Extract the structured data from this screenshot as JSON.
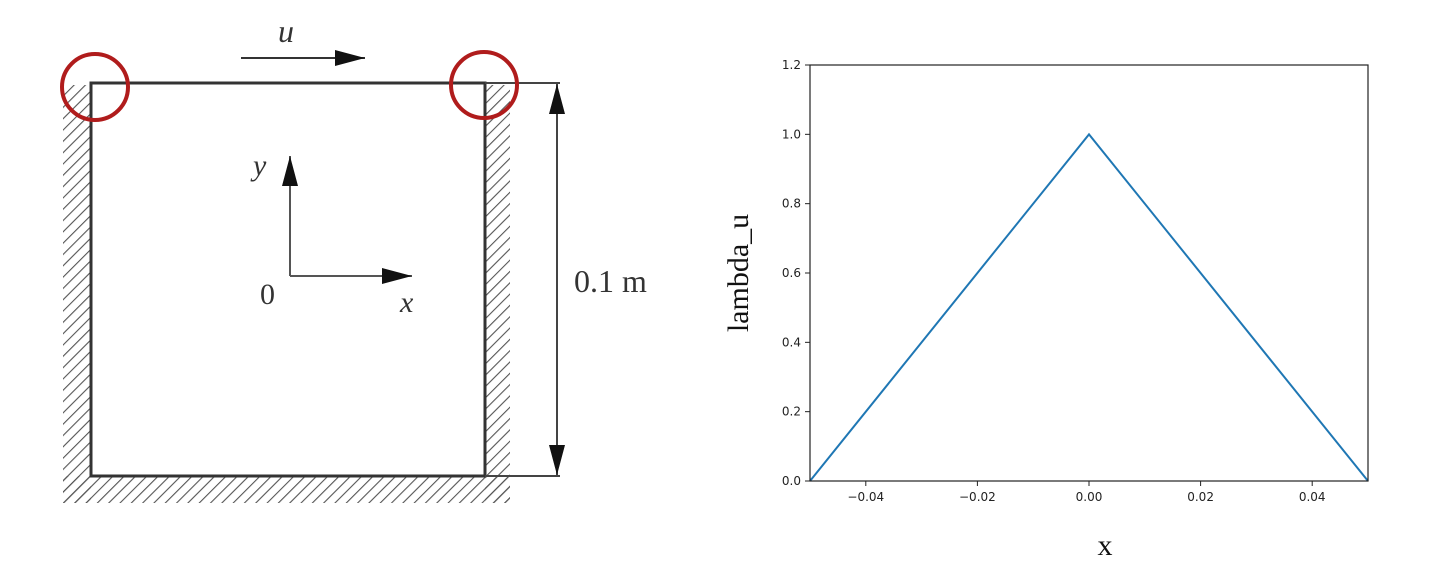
{
  "diagram": {
    "lid_velocity_label": "u",
    "y_axis_label": "y",
    "x_axis_label": "x",
    "origin_label": "0",
    "dimension_label": "0.1 m",
    "highlight_color": "#b01c1c"
  },
  "chart_data": {
    "type": "line",
    "title": "",
    "xlabel": "x",
    "ylabel": "lambda_u",
    "xlim": [
      -0.05,
      0.05
    ],
    "ylim": [
      0.0,
      1.2
    ],
    "xticks": [
      "−0.04",
      "−0.02",
      "0.00",
      "0.02",
      "0.04"
    ],
    "xtick_values": [
      -0.04,
      -0.02,
      0.0,
      0.02,
      0.04
    ],
    "yticks": [
      "0.0",
      "0.2",
      "0.4",
      "0.6",
      "0.8",
      "1.0",
      "1.2"
    ],
    "ytick_values": [
      0.0,
      0.2,
      0.4,
      0.6,
      0.8,
      1.0,
      1.2
    ],
    "grid": false,
    "series": [
      {
        "x": [
          -0.05,
          0.0,
          0.05
        ],
        "y": [
          0.0,
          1.0,
          0.0
        ],
        "color": "#1f77b4"
      }
    ]
  }
}
